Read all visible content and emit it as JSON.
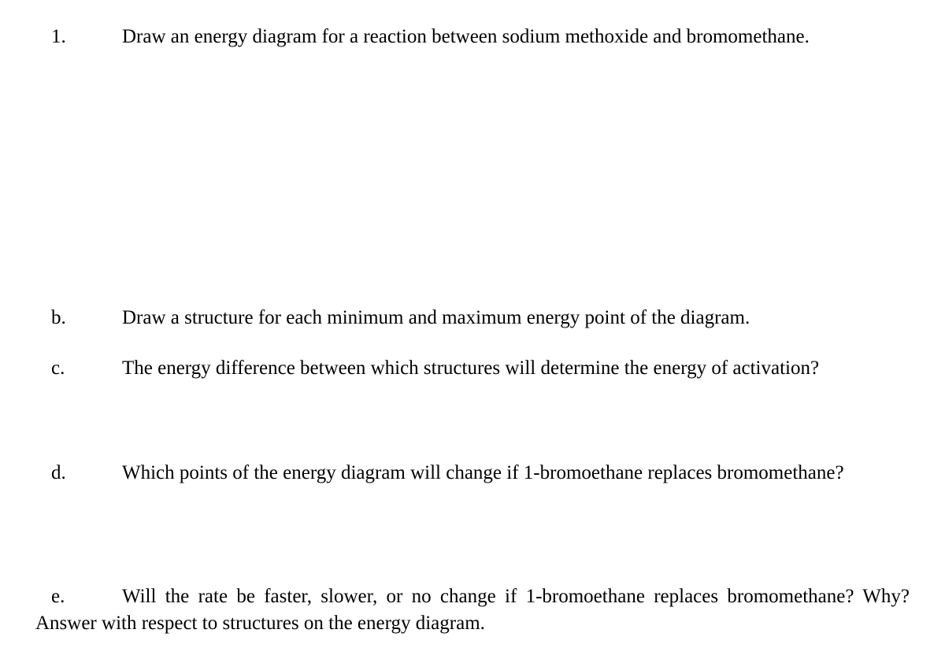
{
  "font_family": "Times New Roman",
  "font_size_pt": 19,
  "text_color": "#000000",
  "background_color": "#ffffff",
  "questions": {
    "q1": {
      "label": "1.",
      "text": "Draw an energy diagram for a reaction between sodium methoxide and bromomethane."
    },
    "qb": {
      "label": "b.",
      "text": "Draw a structure for each minimum and maximum energy point of the diagram."
    },
    "qc": {
      "label": "c.",
      "text": "The energy difference between which structures will determine the energy of activation?"
    },
    "qd": {
      "label": "d.",
      "text": "Which points of the energy diagram will change if 1-bromoethane replaces bromomethane?"
    },
    "qe": {
      "label": "e.",
      "text": "Will the rate be faster, slower, or no change if 1-bromoethane replaces bromomethane? Why?  Answer with respect to structures on the energy diagram."
    }
  }
}
